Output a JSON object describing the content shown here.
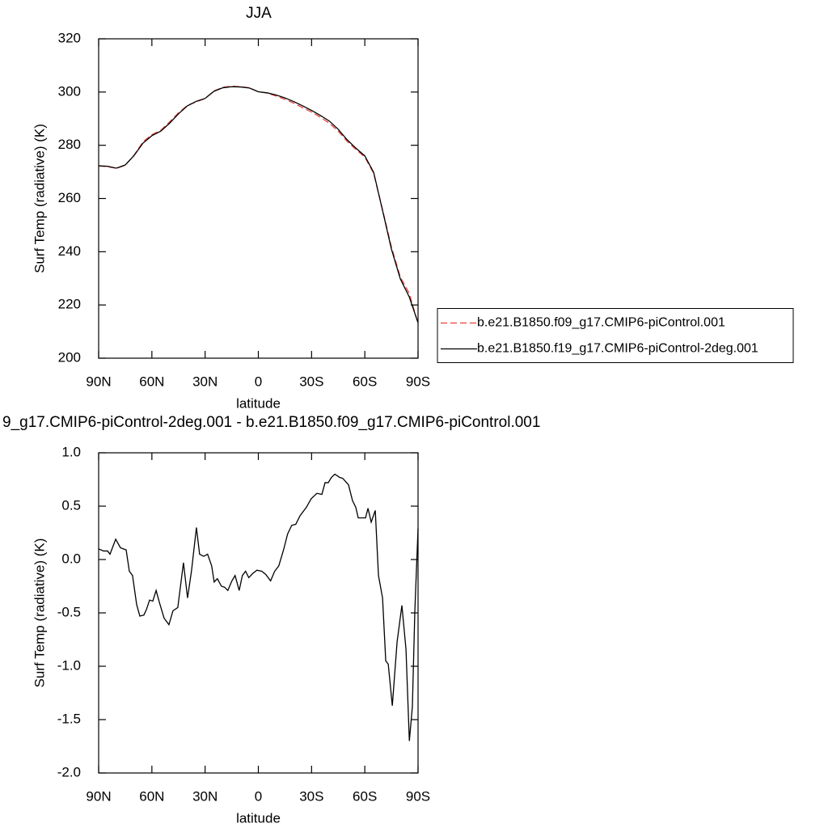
{
  "chart_data": [
    {
      "type": "line",
      "title": "JJA",
      "x_label": "latitude",
      "y_label": "Surf Temp (radiative) (K)",
      "x": [
        90,
        85,
        80,
        75,
        70,
        65,
        60,
        55,
        50,
        45,
        40,
        35,
        30,
        25,
        20,
        15,
        10,
        5,
        0,
        -5,
        -10,
        -15,
        -20,
        -25,
        -30,
        -35,
        -40,
        -45,
        -50,
        -55,
        -60,
        -65,
        -70,
        -75,
        -80,
        -85,
        -90
      ],
      "series": [
        {
          "name": "b.e21.B1850.f09_g17.CMIP6-piControl.001",
          "color": "#e8413a",
          "dash": true,
          "values": [
            272.2,
            272.0,
            271.3,
            272.5,
            276.3,
            281.3,
            284.0,
            285.6,
            288.8,
            292.2,
            295.0,
            296.3,
            297.6,
            300.4,
            301.8,
            302.2,
            302.0,
            301.6,
            300.1,
            299.6,
            298.5,
            297.3,
            295.8,
            294.1,
            292.5,
            290.5,
            288.3,
            285.3,
            281.5,
            278.4,
            275.6,
            269.4,
            255.8,
            241.8,
            230.5,
            224.4,
            213.0
          ]
        },
        {
          "name": "b.e21.B1850.f19_g17.CMIP6-piControl-2deg.001",
          "color": "#000000",
          "dash": false,
          "values": [
            272.3,
            272.1,
            271.4,
            272.6,
            276.2,
            280.8,
            283.6,
            285.3,
            288.3,
            291.8,
            294.8,
            296.5,
            297.6,
            300.3,
            301.6,
            302.0,
            301.9,
            301.5,
            300.1,
            299.7,
            298.9,
            297.8,
            296.4,
            294.8,
            293.1,
            291.2,
            289.1,
            286.0,
            282.1,
            278.9,
            276.0,
            269.8,
            255.5,
            241.0,
            229.8,
            223.1,
            213.3
          ]
        }
      ],
      "xlim": [
        90,
        -90
      ],
      "xticks": [
        {
          "value": 90,
          "label": "90N"
        },
        {
          "value": 60,
          "label": "60N"
        },
        {
          "value": 30,
          "label": "30N"
        },
        0,
        {
          "value": -30,
          "label": "30S"
        },
        {
          "value": -60,
          "label": "60S"
        },
        {
          "value": -90,
          "label": "90S"
        }
      ],
      "ylim": [
        200,
        320
      ],
      "yticks": [
        200,
        220,
        240,
        260,
        280,
        300,
        320
      ],
      "legend": "right"
    },
    {
      "type": "line",
      "title": "9_g17.CMIP6-piControl-2deg.001 - b.e21.B1850.f09_g17.CMIP6-piControl.001",
      "x_label": "latitude",
      "y_label": "Surf Temp (radiative) (K)",
      "x": [
        90,
        87.3,
        85.0,
        83.6,
        80.4,
        77.7,
        74.5,
        72.7,
        70.9,
        68.6,
        66.8,
        64.5,
        63.1,
        61.3,
        59.5,
        57.6,
        55.8,
        53.1,
        50.4,
        48.1,
        45.4,
        42.2,
        39.9,
        37.7,
        34.9,
        33.1,
        30.8,
        28.6,
        26.3,
        24.9,
        23.1,
        20.8,
        19.0,
        17.2,
        14.9,
        13.1,
        10.8,
        9.0,
        7.2,
        5.4,
        3.1,
        0.8,
        -1.9,
        -4.2,
        -6.9,
        -9.2,
        -11.5,
        -14.2,
        -16.5,
        -18.8,
        -21.1,
        -23.5,
        -27.1,
        -29.8,
        -33.0,
        -35.8,
        -37.6,
        -39.4,
        -41.2,
        -43.1,
        -45.8,
        -47.6,
        -50.8,
        -53.1,
        -54.9,
        -56.3,
        -58.6,
        -60.4,
        -61.8,
        -63.6,
        -65.9,
        -67.7,
        -70.0,
        -71.8,
        -73.2,
        -75.5,
        -78.2,
        -80.9,
        -83.2,
        -85.1,
        -86.8,
        -88.2,
        -90
      ],
      "series": [
        {
          "color": "#000000",
          "values": [
            0.1,
            0.08,
            0.08,
            0.05,
            0.19,
            0.11,
            0.09,
            -0.11,
            -0.15,
            -0.42,
            -0.53,
            -0.52,
            -0.47,
            -0.38,
            -0.39,
            -0.29,
            -0.4,
            -0.55,
            -0.61,
            -0.48,
            -0.45,
            -0.03,
            -0.36,
            -0.11,
            0.3,
            0.05,
            0.03,
            0.05,
            -0.06,
            -0.21,
            -0.18,
            -0.25,
            -0.26,
            -0.29,
            -0.2,
            -0.15,
            -0.29,
            -0.15,
            -0.11,
            -0.17,
            -0.13,
            -0.1,
            -0.11,
            -0.14,
            -0.2,
            -0.11,
            -0.06,
            0.09,
            0.24,
            0.32,
            0.33,
            0.41,
            0.49,
            0.57,
            0.62,
            0.61,
            0.72,
            0.72,
            0.77,
            0.8,
            0.77,
            0.76,
            0.7,
            0.55,
            0.49,
            0.39,
            0.39,
            0.39,
            0.48,
            0.35,
            0.46,
            -0.15,
            -0.36,
            -0.95,
            -0.98,
            -1.37,
            -0.77,
            -0.43,
            -0.84,
            -1.7,
            -1.38,
            -0.48,
            0.29
          ]
        }
      ],
      "xlim": [
        90,
        -90
      ],
      "xticks": [
        {
          "value": 90,
          "label": "90N"
        },
        {
          "value": 60,
          "label": "60N"
        },
        {
          "value": 30,
          "label": "30N"
        },
        0,
        {
          "value": -30,
          "label": "30S"
        },
        {
          "value": -60,
          "label": "60S"
        },
        {
          "value": -90,
          "label": "90S"
        }
      ],
      "ylim": [
        -2,
        1
      ],
      "yticks": [
        {
          "value": -2,
          "label": "-2.0"
        },
        -1.5,
        {
          "value": -1,
          "label": "-1.0"
        },
        -0.5,
        {
          "value": 0,
          "label": "0.0"
        },
        0.5,
        {
          "value": 1,
          "label": "1.0"
        }
      ]
    }
  ]
}
